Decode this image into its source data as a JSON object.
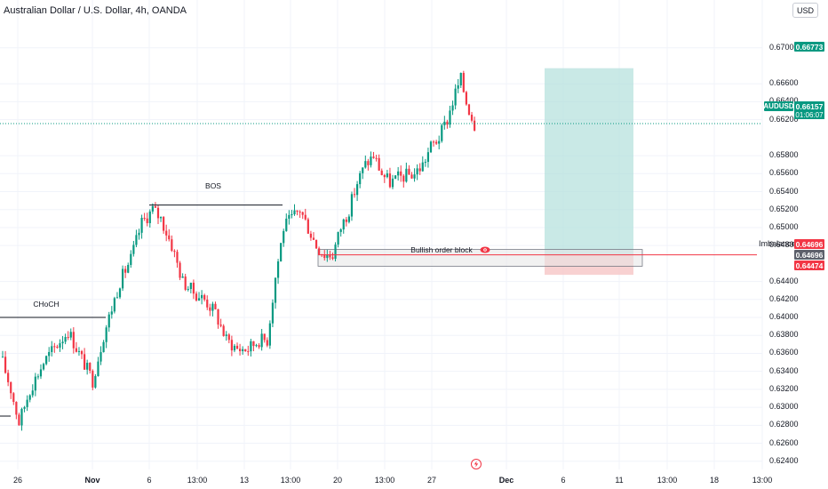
{
  "header": {
    "title": "Australian Dollar / U.S. Dollar, 4h, OANDA",
    "currency": "USD"
  },
  "price_axis": {
    "labels": [
      "0.67000",
      "0.66600",
      "0.66400",
      "0.66200",
      "0.65800",
      "0.65600",
      "0.65400",
      "0.65200",
      "0.65000",
      "0.64800",
      "0.64400",
      "0.64200",
      "0.64000",
      "0.63800",
      "0.63600",
      "0.63400",
      "0.63200",
      "0.63000",
      "0.62800",
      "0.62600",
      "0.62400"
    ]
  },
  "date_axis": {
    "labels": [
      {
        "text": "26",
        "bold": false
      },
      {
        "text": "Nov",
        "bold": true
      },
      {
        "text": "6",
        "bold": false
      },
      {
        "text": "13:00",
        "bold": false
      },
      {
        "text": "13",
        "bold": false
      },
      {
        "text": "13:00",
        "bold": false
      },
      {
        "text": "20",
        "bold": false
      },
      {
        "text": "13:00",
        "bold": false
      },
      {
        "text": "27",
        "bold": false
      },
      {
        "text": "Dec",
        "bold": true
      },
      {
        "text": "6",
        "bold": false
      },
      {
        "text": "11",
        "bold": false
      },
      {
        "text": "13:00",
        "bold": false
      },
      {
        "text": "18",
        "bold": false
      },
      {
        "text": "13:00",
        "bold": false
      }
    ]
  },
  "tags": {
    "target": "0.66773",
    "symbol": "AUDUSD",
    "current": "0.66157",
    "countdown": "01:06:07",
    "imbalance": "0.64696",
    "order_block": "0.64696",
    "stop": "0.64474"
  },
  "annotations": {
    "choch": "CHoCH",
    "bos": "BOS",
    "order_block": "Bullish order block",
    "imbalance": "Imbalance"
  },
  "colors": {
    "up": "#089981",
    "down": "#f23645",
    "target_zone": "#b2dfdb",
    "stop_zone": "#f7c9c9",
    "order_block_fill": "#e6e6e6"
  },
  "chart_data": {
    "type": "candlestick",
    "ylim": [
      0.6237,
      0.6724
    ],
    "anchors": [
      [
        0,
        0.635
      ],
      [
        3,
        0.632
      ],
      [
        6,
        0.6283
      ],
      [
        10,
        0.632
      ],
      [
        15,
        0.635
      ],
      [
        20,
        0.637
      ],
      [
        24,
        0.6385
      ],
      [
        28,
        0.636
      ],
      [
        33,
        0.633
      ],
      [
        37,
        0.638
      ],
      [
        40,
        0.641
      ],
      [
        43,
        0.644
      ],
      [
        47,
        0.6465
      ],
      [
        51,
        0.6505
      ],
      [
        55,
        0.652
      ],
      [
        58,
        0.651
      ],
      [
        62,
        0.648
      ],
      [
        66,
        0.644
      ],
      [
        70,
        0.6428
      ],
      [
        74,
        0.642
      ],
      [
        78,
        0.6405
      ],
      [
        82,
        0.6375
      ],
      [
        86,
        0.6365
      ],
      [
        90,
        0.6365
      ],
      [
        94,
        0.6375
      ],
      [
        97,
        0.6375
      ],
      [
        100,
        0.6445
      ],
      [
        103,
        0.65
      ],
      [
        106,
        0.651
      ],
      [
        109,
        0.652
      ],
      [
        112,
        0.65
      ],
      [
        115,
        0.648
      ],
      [
        118,
        0.647
      ],
      [
        121,
        0.647
      ],
      [
        124,
        0.65
      ],
      [
        127,
        0.652
      ],
      [
        130,
        0.655
      ],
      [
        133,
        0.657
      ],
      [
        136,
        0.658
      ],
      [
        139,
        0.656
      ],
      [
        142,
        0.655
      ],
      [
        145,
        0.6555
      ],
      [
        148,
        0.6558
      ],
      [
        151,
        0.656
      ],
      [
        154,
        0.657
      ],
      [
        157,
        0.659
      ],
      [
        160,
        0.66
      ],
      [
        163,
        0.662
      ],
      [
        166,
        0.665
      ],
      [
        168,
        0.6665
      ],
      [
        170,
        0.664
      ],
      [
        173,
        0.6615
      ]
    ],
    "choch": {
      "level": 0.64
    },
    "bos": {
      "level": 0.6525
    },
    "order_block": {
      "top": 0.64756,
      "bottom": 0.6457
    },
    "target_zone": {
      "top": 0.66773,
      "bottom": 0.64696
    },
    "stop_zone": {
      "top": 0.64696,
      "bottom": 0.64474
    },
    "current_price": 0.66157
  }
}
